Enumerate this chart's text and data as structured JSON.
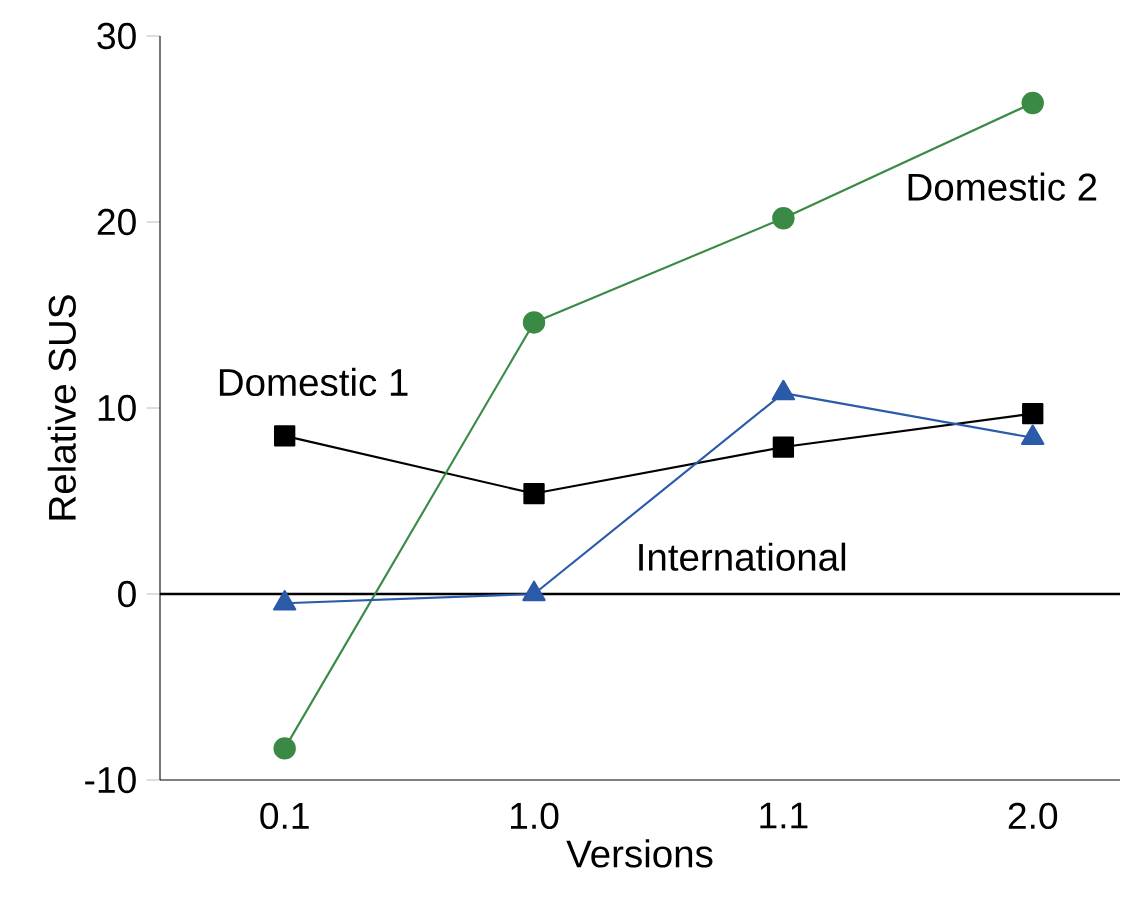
{
  "chart_data": {
    "type": "line",
    "xlabel": "Versions",
    "ylabel": "Relative SUS",
    "categories": [
      "0.1",
      "1.0",
      "1.1",
      "2.0"
    ],
    "series": [
      {
        "name": "Domestic 1",
        "color": "#000000",
        "marker": "square",
        "values": [
          8.5,
          5.4,
          7.9,
          9.7
        ]
      },
      {
        "name": "Domestic 2",
        "color": "#3a8a45",
        "marker": "circle",
        "values": [
          -8.3,
          14.6,
          20.2,
          26.4
        ]
      },
      {
        "name": "International",
        "color": "#2a5aa8",
        "marker": "triangle",
        "values": [
          -0.5,
          0,
          10.8,
          8.4
        ]
      }
    ],
    "ylim": [
      -10,
      30
    ],
    "yticks": [
      -10,
      0,
      10,
      20,
      30
    ],
    "ref_lines": [
      {
        "axis": "y",
        "value": 0,
        "color": "#000000"
      }
    ],
    "grid": false,
    "line_style": "solid"
  }
}
